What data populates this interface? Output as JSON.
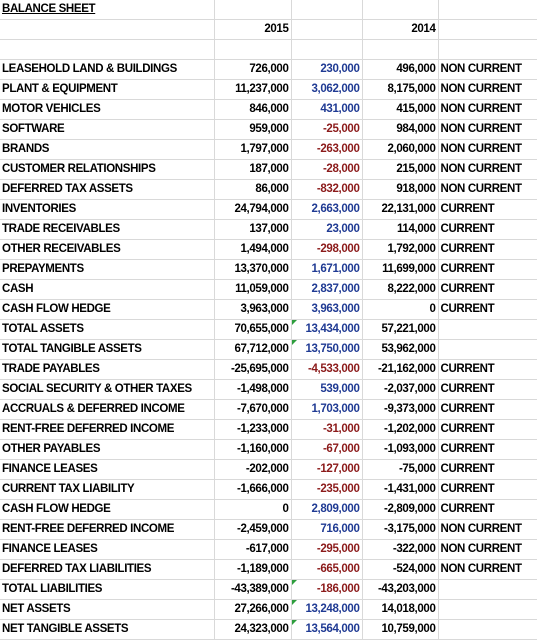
{
  "sheet": {
    "title": "BALANCE SHEET",
    "year_a": "2015",
    "year_b": "2014"
  },
  "rows": [
    {
      "label": "LEASEHOLD LAND & BUILDINGS",
      "y2015": "726,000",
      "change": "230,000",
      "change_sign": "pos",
      "y2014": "496,000",
      "type": "NON CURRENT"
    },
    {
      "label": "PLANT & EQUIPMENT",
      "y2015": "11,237,000",
      "change": "3,062,000",
      "change_sign": "pos",
      "y2014": "8,175,000",
      "type": "NON CURRENT"
    },
    {
      "label": "MOTOR VEHICLES",
      "y2015": "846,000",
      "change": "431,000",
      "change_sign": "pos",
      "y2014": "415,000",
      "type": "NON CURRENT"
    },
    {
      "label": "SOFTWARE",
      "y2015": "959,000",
      "change": "-25,000",
      "change_sign": "neg",
      "y2014": "984,000",
      "type": "NON CURRENT"
    },
    {
      "label": "BRANDS",
      "y2015": "1,797,000",
      "change": "-263,000",
      "change_sign": "neg",
      "y2014": "2,060,000",
      "type": "NON CURRENT"
    },
    {
      "label": "CUSTOMER RELATIONSHIPS",
      "y2015": "187,000",
      "change": "-28,000",
      "change_sign": "neg",
      "y2014": "215,000",
      "type": "NON CURRENT"
    },
    {
      "label": "DEFERRED TAX ASSETS",
      "y2015": "86,000",
      "change": "-832,000",
      "change_sign": "neg",
      "y2014": "918,000",
      "type": "NON CURRENT"
    },
    {
      "label": "INVENTORIES",
      "y2015": "24,794,000",
      "change": "2,663,000",
      "change_sign": "pos",
      "y2014": "22,131,000",
      "type": "CURRENT"
    },
    {
      "label": "TRADE RECEIVABLES",
      "y2015": "137,000",
      "change": "23,000",
      "change_sign": "pos",
      "y2014": "114,000",
      "type": "CURRENT"
    },
    {
      "label": "OTHER RECEIVABLES",
      "y2015": "1,494,000",
      "change": "-298,000",
      "change_sign": "neg",
      "y2014": "1,792,000",
      "type": "CURRENT"
    },
    {
      "label": "PREPAYMENTS",
      "y2015": "13,370,000",
      "change": "1,671,000",
      "change_sign": "pos",
      "y2014": "11,699,000",
      "type": "CURRENT"
    },
    {
      "label": "CASH",
      "y2015": "11,059,000",
      "change": "2,837,000",
      "change_sign": "pos",
      "y2014": "8,222,000",
      "type": "CURRENT"
    },
    {
      "label": "CASH FLOW HEDGE",
      "y2015": "3,963,000",
      "change": "3,963,000",
      "change_sign": "pos",
      "y2014": "0",
      "type": "CURRENT"
    },
    {
      "label": "TOTAL ASSETS",
      "y2015": "70,655,000",
      "change": "13,434,000",
      "change_sign": "pos",
      "y2014": "57,221,000",
      "type": "",
      "flag": true
    },
    {
      "label": "TOTAL TANGIBLE ASSETS",
      "y2015": "67,712,000",
      "change": "13,750,000",
      "change_sign": "pos",
      "y2014": "53,962,000",
      "type": "",
      "flag": true
    },
    {
      "label": "TRADE PAYABLES",
      "y2015": "-25,695,000",
      "change": "-4,533,000",
      "change_sign": "neg",
      "y2014": "-21,162,000",
      "type": "CURRENT"
    },
    {
      "label": "SOCIAL SECURITY & OTHER TAXES",
      "y2015": "-1,498,000",
      "change": "539,000",
      "change_sign": "pos",
      "y2014": "-2,037,000",
      "type": "CURRENT"
    },
    {
      "label": "ACCRUALS & DEFERRED INCOME",
      "y2015": "-7,670,000",
      "change": "1,703,000",
      "change_sign": "pos",
      "y2014": "-9,373,000",
      "type": "CURRENT"
    },
    {
      "label": "RENT-FREE DEFERRED INCOME",
      "y2015": "-1,233,000",
      "change": "-31,000",
      "change_sign": "neg",
      "y2014": "-1,202,000",
      "type": "CURRENT"
    },
    {
      "label": "OTHER PAYABLES",
      "y2015": "-1,160,000",
      "change": "-67,000",
      "change_sign": "neg",
      "y2014": "-1,093,000",
      "type": "CURRENT"
    },
    {
      "label": "FINANCE LEASES",
      "y2015": "-202,000",
      "change": "-127,000",
      "change_sign": "neg",
      "y2014": "-75,000",
      "type": "CURRENT"
    },
    {
      "label": "CURRENT TAX LIABILITY",
      "y2015": "-1,666,000",
      "change": "-235,000",
      "change_sign": "neg",
      "y2014": "-1,431,000",
      "type": "CURRENT"
    },
    {
      "label": "CASH FLOW HEDGE",
      "y2015": "0",
      "change": "2,809,000",
      "change_sign": "pos",
      "y2014": "-2,809,000",
      "type": "CURRENT"
    },
    {
      "label": "RENT-FREE DEFERRED INCOME",
      "y2015": "-2,459,000",
      "change": "716,000",
      "change_sign": "pos",
      "y2014": "-3,175,000",
      "type": "NON CURRENT"
    },
    {
      "label": "FINANCE LEASES",
      "y2015": "-617,000",
      "change": "-295,000",
      "change_sign": "neg",
      "y2014": "-322,000",
      "type": "NON CURRENT"
    },
    {
      "label": "DEFERRED TAX LIABILITIES",
      "y2015": "-1,189,000",
      "change": "-665,000",
      "change_sign": "neg",
      "y2014": "-524,000",
      "type": "NON CURRENT"
    },
    {
      "label": "TOTAL LIABILITIES",
      "y2015": "-43,389,000",
      "change": "-186,000",
      "change_sign": "neg",
      "y2014": "-43,203,000",
      "type": "",
      "flag": true
    },
    {
      "label": "NET ASSETS",
      "y2015": "27,266,000",
      "change": "13,248,000",
      "change_sign": "pos",
      "y2014": "14,018,000",
      "type": "",
      "flag": true
    },
    {
      "label": "NET TANGIBLE ASSETS",
      "y2015": "24,323,000",
      "change": "13,564,000",
      "change_sign": "pos",
      "y2014": "10,759,000",
      "type": "",
      "flag": true
    }
  ]
}
